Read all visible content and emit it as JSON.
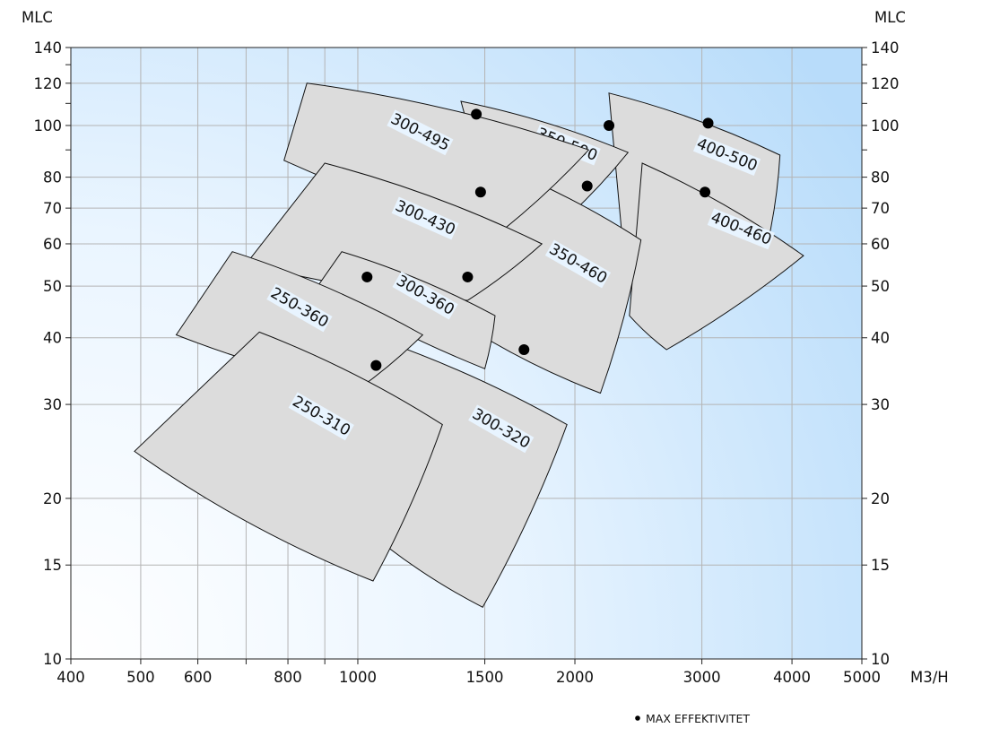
{
  "chart_data": {
    "type": "scatter",
    "x_scale": "log",
    "y_scale": "log",
    "xlim": [
      400,
      5000
    ],
    "ylim": [
      10,
      140
    ],
    "x_unit_label": "M3/H",
    "y_label_left": "MLC",
    "y_label_right": "MLC",
    "grid": true,
    "x_ticks_labeled": [
      {
        "value": 400,
        "label": "400"
      },
      {
        "value": 500,
        "label": "500"
      },
      {
        "value": 600,
        "label": "600"
      },
      {
        "value": 800,
        "label": "800"
      },
      {
        "value": 1000,
        "label": "1000"
      },
      {
        "value": 1500,
        "label": "1500"
      },
      {
        "value": 2000,
        "label": "2000"
      },
      {
        "value": 3000,
        "label": "3000"
      },
      {
        "value": 4000,
        "label": "4000"
      },
      {
        "value": 5000,
        "label": "5000"
      }
    ],
    "x_grid_values": [
      500,
      600,
      700,
      800,
      900,
      1000,
      1500,
      2000,
      3000,
      4000
    ],
    "y_ticks_labeled": [
      {
        "value": 10,
        "label": "10"
      },
      {
        "value": 15,
        "label": "15"
      },
      {
        "value": 20,
        "label": "20"
      },
      {
        "value": 30,
        "label": "30"
      },
      {
        "value": 40,
        "label": "40"
      },
      {
        "value": 50,
        "label": "50"
      },
      {
        "value": 60,
        "label": "60"
      },
      {
        "value": 70,
        "label": "70"
      },
      {
        "value": 80,
        "label": "80"
      },
      {
        "value": 100,
        "label": "100"
      },
      {
        "value": 120,
        "label": "120"
      },
      {
        "value": 140,
        "label": "140"
      }
    ],
    "y_grid_values": [
      15,
      20,
      30,
      40,
      50,
      60,
      70,
      80,
      100,
      120
    ],
    "y_minor_ticks": [
      90,
      110,
      130
    ],
    "regions": [
      {
        "label": "400-500",
        "rotation": 22,
        "corners": {
          "tl": [
            2230,
            115
          ],
          "tr": [
            3850,
            88
          ],
          "br": [
            3700,
            60
          ],
          "bl": [
            2330,
            60
          ]
        },
        "top_bulge": 0.05,
        "bottom_bulge": -0.04,
        "right_bulge": 0.04,
        "left_bulge": 0,
        "max_efficiency": [
          3060,
          101
        ],
        "label_at": [
          3250,
          88
        ]
      },
      {
        "label": "400-460",
        "rotation": 22,
        "corners": {
          "tl": [
            2480,
            85
          ],
          "tr": [
            4150,
            57
          ],
          "br": [
            2680,
            38
          ],
          "bl": [
            2380,
            44
          ]
        },
        "top_bulge": 0.05,
        "bottom_bulge": -0.05,
        "right_bulge": 0.04,
        "left_bulge": 0,
        "max_efficiency": [
          3030,
          75
        ],
        "label_at": [
          3400,
          64
        ]
      },
      {
        "label": "350-500",
        "rotation": 22,
        "corners": {
          "tl": [
            1390,
            111
          ],
          "tr": [
            2370,
            89
          ],
          "br": [
            1900,
            65
          ],
          "bl": [
            1550,
            65
          ]
        },
        "top_bulge": 0.05,
        "bottom_bulge": -0.04,
        "right_bulge": 0.04,
        "left_bulge": 0,
        "max_efficiency": [
          2230,
          100
        ],
        "label_at": [
          1950,
          92
        ]
      },
      {
        "label": "350-460",
        "rotation": 30,
        "corners": {
          "tl": [
            1560,
            84
          ],
          "tr": [
            2470,
            61
          ],
          "br": [
            2170,
            31.5
          ],
          "bl": [
            1310,
            45
          ]
        },
        "top_bulge": 0.05,
        "bottom_bulge": -0.06,
        "right_bulge": 0.04,
        "left_bulge": 0,
        "max_efficiency": [
          2080,
          77
        ],
        "label_at": [
          2020,
          55
        ]
      },
      {
        "label": "300-495",
        "rotation": 27,
        "corners": {
          "tl": [
            850,
            120
          ],
          "tr": [
            2090,
            90
          ],
          "br": [
            1550,
            62
          ],
          "bl": [
            790,
            86
          ]
        },
        "top_bulge": 0.05,
        "bottom_bulge": -0.04,
        "right_bulge": 0.04,
        "left_bulge": 0,
        "max_efficiency": [
          1460,
          105
        ],
        "label_at": [
          1220,
          97
        ]
      },
      {
        "label": "300-430",
        "rotation": 24,
        "corners": {
          "tl": [
            900,
            85
          ],
          "tr": [
            1800,
            60
          ],
          "br": [
            1420,
            47
          ],
          "bl": [
            700,
            55
          ]
        },
        "top_bulge": 0.05,
        "bottom_bulge": -0.04,
        "right_bulge": 0.04,
        "left_bulge": 0,
        "max_efficiency": [
          1480,
          75
        ],
        "label_at": [
          1240,
          67
        ]
      },
      {
        "label": "300-360",
        "rotation": 30,
        "corners": {
          "tl": [
            950,
            58
          ],
          "tr": [
            1550,
            44
          ],
          "br": [
            1500,
            35
          ],
          "bl": [
            880,
            50
          ]
        },
        "top_bulge": 0.05,
        "bottom_bulge": -0.04,
        "right_bulge": 0.04,
        "left_bulge": 0,
        "max_efficiency": [
          1420,
          52
        ],
        "label_at": [
          1240,
          48
        ]
      },
      {
        "label": "300-320",
        "rotation": 30,
        "corners": {
          "tl": [
            1000,
            41
          ],
          "tr": [
            1950,
            27.5
          ],
          "br": [
            1490,
            12.5
          ],
          "bl": [
            1000,
            18
          ]
        },
        "top_bulge": 0.05,
        "bottom_bulge": -0.06,
        "right_bulge": 0.04,
        "left_bulge": 0,
        "max_efficiency": [
          1700,
          38
        ],
        "label_at": [
          1580,
          27
        ]
      },
      {
        "label": "250-360",
        "rotation": 30,
        "corners": {
          "tl": [
            670,
            58
          ],
          "tr": [
            1230,
            40.5
          ],
          "br": [
            1000,
            32
          ],
          "bl": [
            560,
            40.5
          ]
        },
        "top_bulge": 0.05,
        "bottom_bulge": -0.04,
        "right_bulge": 0.04,
        "left_bulge": 0,
        "max_efficiency": [
          1030,
          52
        ],
        "label_at": [
          830,
          45.5
        ]
      },
      {
        "label": "250-310",
        "rotation": 30,
        "corners": {
          "tl": [
            730,
            41
          ],
          "tr": [
            1310,
            27.5
          ],
          "br": [
            1050,
            14
          ],
          "bl": [
            490,
            24.5
          ]
        },
        "top_bulge": 0.05,
        "bottom_bulge": -0.06,
        "right_bulge": 0.04,
        "left_bulge": 0,
        "max_efficiency": [
          1060,
          35.5
        ],
        "label_at": [
          890,
          28.5
        ]
      }
    ],
    "legend": {
      "marker": "filled-circle",
      "text": "MAX EFFEKTIVITET",
      "placement": "bottom-right"
    },
    "colors": {
      "region_fill": "#dcdcdc",
      "region_stroke": "#111111",
      "marker": "#000000",
      "plot_bg_light": "#ffffff",
      "plot_bg_dark": "#b8dcfa",
      "grid": "#b4b4b4",
      "label_bg": "#e8f4ff"
    }
  }
}
